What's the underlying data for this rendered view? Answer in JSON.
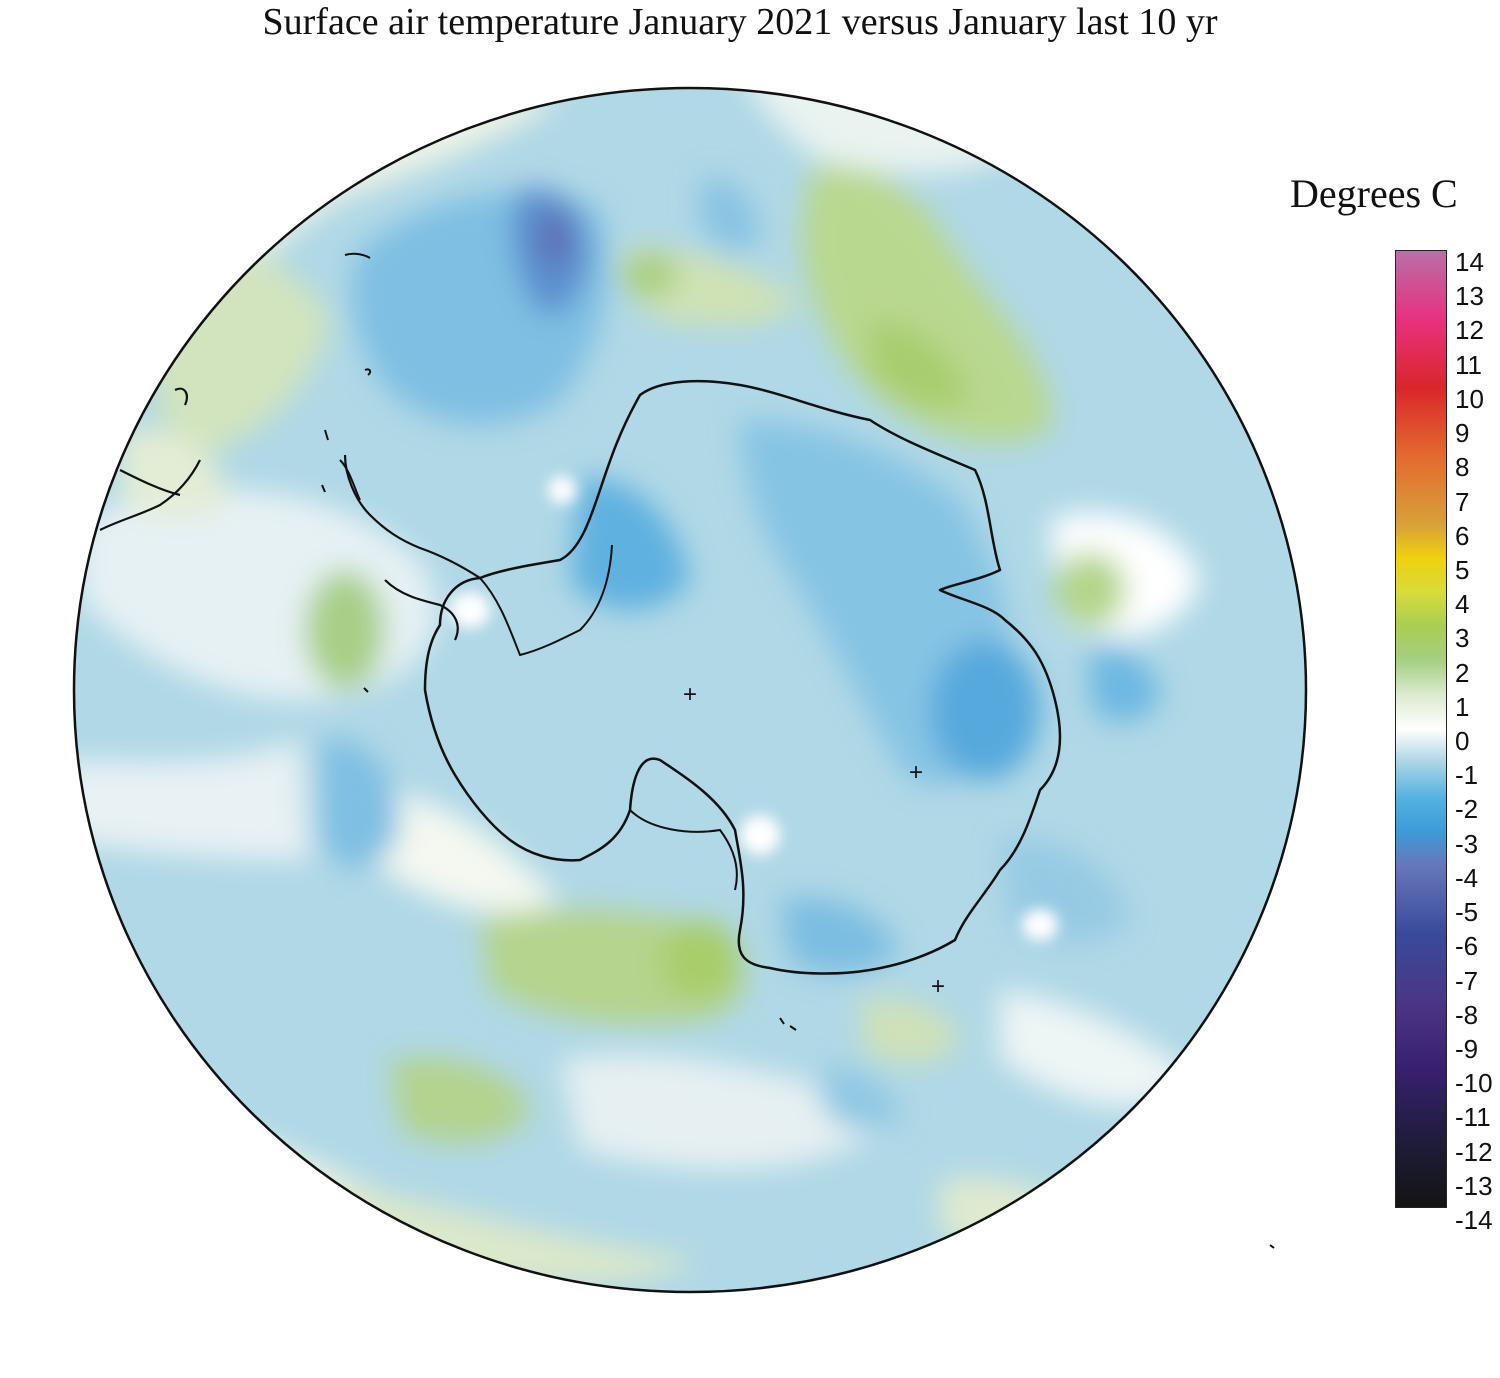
{
  "title": "Surface air temperature January 2021 versus January last 10 yr",
  "legend": {
    "title": "Degrees C",
    "ticks": [
      "14",
      "13",
      "12",
      "11",
      "10",
      "9",
      "8",
      "7",
      "6",
      "5",
      "4",
      "3",
      "2",
      "1",
      "0",
      "-1",
      "-2",
      "-3",
      "-4",
      "-5",
      "-6",
      "-7",
      "-8",
      "-9",
      "-10",
      "-11",
      "-12",
      "-13",
      "-14"
    ],
    "range": [
      -14,
      14
    ],
    "stops": [
      {
        "value": 14,
        "color": "#b86fa8"
      },
      {
        "value": 12,
        "color": "#e8317f"
      },
      {
        "value": 10,
        "color": "#d9262b"
      },
      {
        "value": 8,
        "color": "#e36a2e"
      },
      {
        "value": 6,
        "color": "#d8a03a"
      },
      {
        "value": 5,
        "color": "#efd10e"
      },
      {
        "value": 4,
        "color": "#d7dc3a"
      },
      {
        "value": 3,
        "color": "#a9cd52"
      },
      {
        "value": 2,
        "color": "#a6cf83"
      },
      {
        "value": 1,
        "color": "#dcead0"
      },
      {
        "value": 0,
        "color": "#ffffff"
      },
      {
        "value": -1,
        "color": "#a9d4e4"
      },
      {
        "value": -2,
        "color": "#55b2e0"
      },
      {
        "value": -3,
        "color": "#3d9bd8"
      },
      {
        "value": -4,
        "color": "#6677bb"
      },
      {
        "value": -6,
        "color": "#3a4a9a"
      },
      {
        "value": -8,
        "color": "#4b3686"
      },
      {
        "value": -10,
        "color": "#37206e"
      },
      {
        "value": -12,
        "color": "#1f1d3b"
      },
      {
        "value": -14,
        "color": "#141414"
      }
    ]
  },
  "map": {
    "projection": "south-polar-stereographic",
    "background_anomaly_color": "#a9d4e4",
    "marker_glyph": "+"
  }
}
